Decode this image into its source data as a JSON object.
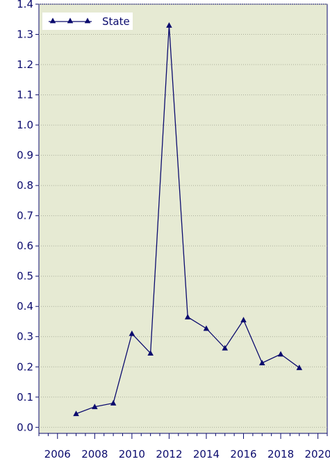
{
  "chart_data": {
    "type": "line",
    "x": [
      2007,
      2008,
      2009,
      2010,
      2011,
      2012,
      2013,
      2014,
      2015,
      2016,
      2017,
      2018,
      2019
    ],
    "series": [
      {
        "name": "State",
        "values": [
          0.045,
          0.068,
          0.08,
          0.31,
          0.245,
          1.33,
          0.365,
          0.327,
          0.262,
          0.355,
          0.213,
          0.242,
          0.197
        ]
      }
    ],
    "xlim": [
      2005,
      2020.5
    ],
    "ylim": [
      -0.02,
      1.4
    ],
    "x_ticks": [
      2006,
      2008,
      2010,
      2012,
      2014,
      2016,
      2018,
      2020
    ],
    "x_tick_labels": [
      "2006",
      "2008",
      "2010",
      "2012",
      "2014",
      "2016",
      "2018",
      "2020"
    ],
    "y_ticks": [
      0.0,
      0.1,
      0.2,
      0.3,
      0.4,
      0.5,
      0.6,
      0.7,
      0.8,
      0.9,
      1.0,
      1.1,
      1.2,
      1.3,
      1.4
    ],
    "y_tick_labels": [
      "0.0",
      "0.1",
      "0.2",
      "0.3",
      "0.4",
      "0.5",
      "0.6",
      "0.7",
      "0.8",
      "0.9",
      "1.0",
      "1.1",
      "1.2",
      "1.3",
      "1.4"
    ],
    "grid": "horizontal dotted",
    "legend": "top-left",
    "marker": "triangle",
    "colors": {
      "plot_background": "#e6ead3",
      "series": "#0b0b6e",
      "axis": "#0b0b6e",
      "grid": "#a9ad9a",
      "legend_background": "#ffffff"
    }
  }
}
